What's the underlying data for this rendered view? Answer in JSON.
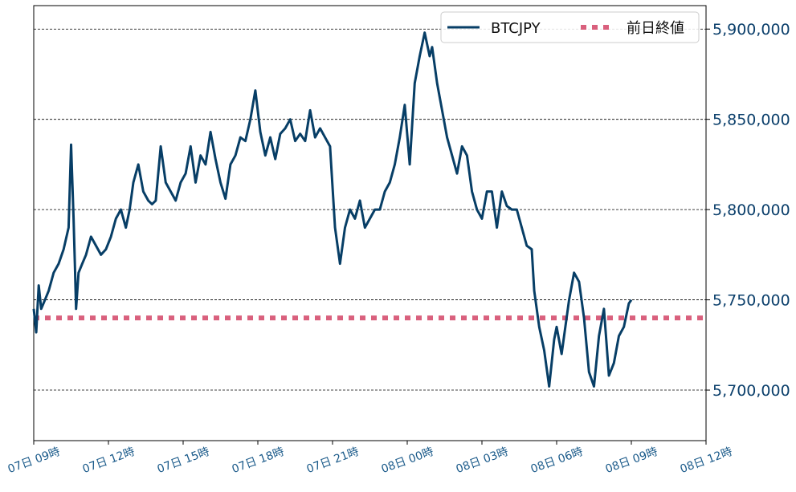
{
  "chart_data": {
    "type": "line",
    "title": "",
    "xlabel": "",
    "ylabel": "",
    "x_ticks": [
      "07日 09時",
      "07日 12時",
      "07日 15時",
      "07日 18時",
      "07日 21時",
      "08日 00時",
      "08日 03時",
      "08日 06時",
      "08日 09時",
      "08日 12時"
    ],
    "xlim": [
      0,
      27
    ],
    "ylim": [
      5672000,
      5913000
    ],
    "y_ticks": [
      5700000,
      5750000,
      5800000,
      5850000,
      5900000
    ],
    "y_tick_labels": [
      "5,700,000",
      "5,750,000",
      "5,800,000",
      "5,850,000",
      "5,900,000"
    ],
    "grid": "horizontal dashed",
    "y_axis_side": "right",
    "legend_position": "top-right",
    "series": [
      {
        "name": "BTCJPY",
        "color": "#073e66",
        "style": "solid",
        "x": [
          0,
          0.1,
          0.2,
          0.3,
          0.45,
          0.6,
          0.8,
          1.0,
          1.2,
          1.4,
          1.5,
          1.6,
          1.65,
          1.7,
          1.8,
          1.95,
          2.1,
          2.3,
          2.5,
          2.7,
          2.9,
          3.1,
          3.3,
          3.5,
          3.7,
          3.85,
          4.0,
          4.2,
          4.4,
          4.6,
          4.75,
          4.9,
          5.1,
          5.3,
          5.5,
          5.7,
          5.9,
          6.1,
          6.3,
          6.5,
          6.7,
          6.9,
          7.1,
          7.3,
          7.5,
          7.7,
          7.9,
          8.1,
          8.3,
          8.5,
          8.7,
          8.9,
          9.1,
          9.3,
          9.5,
          9.7,
          9.9,
          10.1,
          10.3,
          10.5,
          10.7,
          10.9,
          11.1,
          11.3,
          11.5,
          11.7,
          11.9,
          12.1,
          12.3,
          12.5,
          12.7,
          12.9,
          13.1,
          13.3,
          13.5,
          13.7,
          13.9,
          14.1,
          14.3,
          14.5,
          14.7,
          14.9,
          15.1,
          15.3,
          15.5,
          15.7,
          15.9,
          16.0,
          16.2,
          16.4,
          16.6,
          16.8,
          17.0,
          17.2,
          17.4,
          17.6,
          17.8,
          18.0,
          18.2,
          18.4,
          18.6,
          18.8,
          19.0,
          19.2,
          19.4,
          19.6,
          19.8,
          20.0,
          20.1,
          20.3,
          20.5,
          20.7,
          20.9,
          21.0,
          21.2,
          21.4,
          21.5,
          21.7,
          21.9,
          22.1,
          22.3,
          22.5,
          22.7,
          22.9,
          23.1,
          23.3,
          23.5,
          23.7,
          23.9,
          24.0
        ],
        "y": [
          5745000,
          5732000,
          5758000,
          5745000,
          5750000,
          5755000,
          5765000,
          5770000,
          5778000,
          5790000,
          5836000,
          5795000,
          5770000,
          5745000,
          5765000,
          5770000,
          5775000,
          5785000,
          5780000,
          5775000,
          5778000,
          5785000,
          5795000,
          5800000,
          5790000,
          5800000,
          5815000,
          5825000,
          5810000,
          5805000,
          5803000,
          5805000,
          5835000,
          5815000,
          5810000,
          5805000,
          5815000,
          5820000,
          5835000,
          5815000,
          5830000,
          5825000,
          5843000,
          5828000,
          5815000,
          5806000,
          5825000,
          5830000,
          5840000,
          5838000,
          5850000,
          5866000,
          5843000,
          5830000,
          5840000,
          5828000,
          5842000,
          5845000,
          5850000,
          5838000,
          5842000,
          5838000,
          5855000,
          5840000,
          5845000,
          5840000,
          5835000,
          5790000,
          5770000,
          5790000,
          5800000,
          5795000,
          5805000,
          5790000,
          5795000,
          5800000,
          5800000,
          5810000,
          5815000,
          5825000,
          5840000,
          5858000,
          5825000,
          5870000,
          5885000,
          5898000,
          5885000,
          5890000,
          5870000,
          5855000,
          5840000,
          5830000,
          5820000,
          5835000,
          5830000,
          5810000,
          5800000,
          5795000,
          5810000,
          5810000,
          5790000,
          5810000,
          5802000,
          5800000,
          5800000,
          5790000,
          5780000,
          5778000,
          5755000,
          5735000,
          5722000,
          5702000,
          5728000,
          5735000,
          5720000,
          5740000,
          5750000,
          5765000,
          5760000,
          5740000,
          5710000,
          5702000,
          5730000,
          5745000,
          5708000,
          5715000,
          5730000,
          5735000,
          5748000,
          5750000
        ]
      },
      {
        "name": "前日終値",
        "color": "#d9607d",
        "style": "dotted",
        "value": 5740000
      }
    ]
  }
}
